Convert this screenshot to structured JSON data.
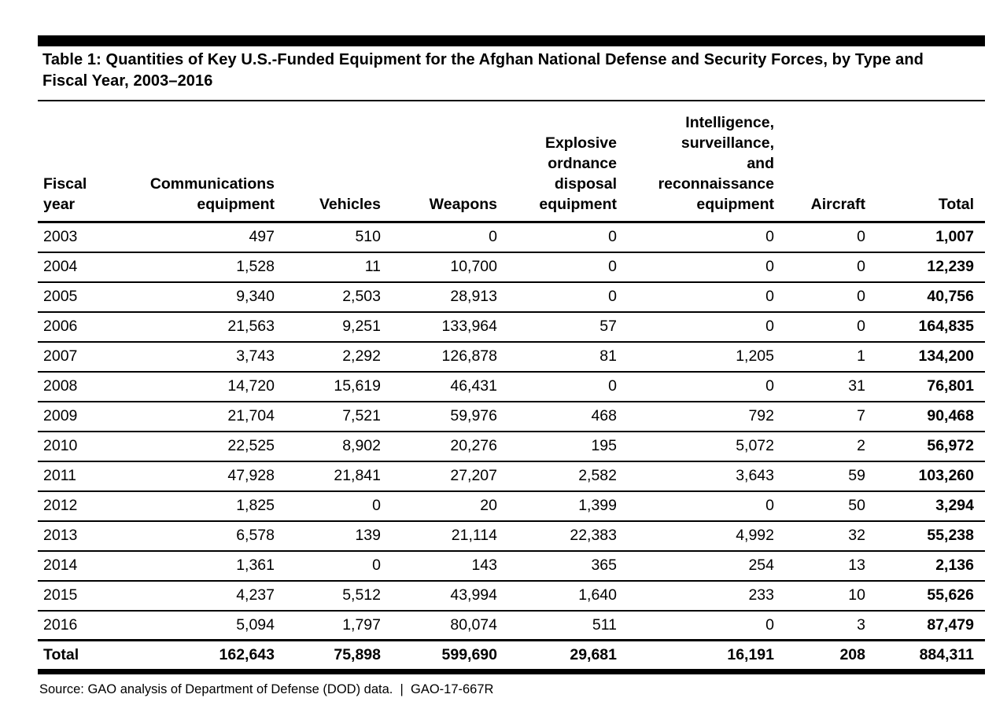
{
  "title": "Table 1: Quantities of Key U.S.-Funded Equipment for the Afghan National Defense and Security Forces, by Type and Fiscal Year, 2003–2016",
  "source": "Source: GAO analysis of Department of Defense (DOD) data.  |  GAO-17-667R",
  "chart_data": {
    "type": "table",
    "title": "Table 1: Quantities of Key U.S.-Funded Equipment for the Afghan National Defense and Security Forces, by Type and Fiscal Year, 2003–2016",
    "columns": [
      "Fiscal year",
      "Communications equipment",
      "Vehicles",
      "Weapons",
      "Explosive ordnance disposal equipment",
      "Intelligence, surveillance, and reconnaissance equipment",
      "Aircraft",
      "Total"
    ],
    "rows": [
      [
        "2003",
        497,
        510,
        0,
        0,
        0,
        0,
        1007
      ],
      [
        "2004",
        1528,
        11,
        10700,
        0,
        0,
        0,
        12239
      ],
      [
        "2005",
        9340,
        2503,
        28913,
        0,
        0,
        0,
        40756
      ],
      [
        "2006",
        21563,
        9251,
        133964,
        57,
        0,
        0,
        164835
      ],
      [
        "2007",
        3743,
        2292,
        126878,
        81,
        1205,
        1,
        134200
      ],
      [
        "2008",
        14720,
        15619,
        46431,
        0,
        0,
        31,
        76801
      ],
      [
        "2009",
        21704,
        7521,
        59976,
        468,
        792,
        7,
        90468
      ],
      [
        "2010",
        22525,
        8902,
        20276,
        195,
        5072,
        2,
        56972
      ],
      [
        "2011",
        47928,
        21841,
        27207,
        2582,
        3643,
        59,
        103260
      ],
      [
        "2012",
        1825,
        0,
        20,
        1399,
        0,
        50,
        3294
      ],
      [
        "2013",
        6578,
        139,
        21114,
        22383,
        4992,
        32,
        55238
      ],
      [
        "2014",
        1361,
        0,
        143,
        365,
        254,
        13,
        2136
      ],
      [
        "2015",
        4237,
        5512,
        43994,
        1640,
        233,
        10,
        55626
      ],
      [
        "2016",
        5094,
        1797,
        80074,
        511,
        0,
        3,
        87479
      ]
    ],
    "total_row": [
      "Total",
      162643,
      75898,
      599690,
      29681,
      16191,
      208,
      884311
    ]
  },
  "table": {
    "columns": [
      "Fiscal\nyear",
      "Communications\nequipment",
      "Vehicles",
      "Weapons",
      "Explosive\nordnance\ndisposal\nequipment",
      "Intelligence,\nsurveillance,\nand\nreconnaissance\nequipment",
      "Aircraft",
      "Total"
    ],
    "rows": [
      [
        "2003",
        "497",
        "510",
        "0",
        "0",
        "0",
        "0",
        "1,007"
      ],
      [
        "2004",
        "1,528",
        "11",
        "10,700",
        "0",
        "0",
        "0",
        "12,239"
      ],
      [
        "2005",
        "9,340",
        "2,503",
        "28,913",
        "0",
        "0",
        "0",
        "40,756"
      ],
      [
        "2006",
        "21,563",
        "9,251",
        "133,964",
        "57",
        "0",
        "0",
        "164,835"
      ],
      [
        "2007",
        "3,743",
        "2,292",
        "126,878",
        "81",
        "1,205",
        "1",
        "134,200"
      ],
      [
        "2008",
        "14,720",
        "15,619",
        "46,431",
        "0",
        "0",
        "31",
        "76,801"
      ],
      [
        "2009",
        "21,704",
        "7,521",
        "59,976",
        "468",
        "792",
        "7",
        "90,468"
      ],
      [
        "2010",
        "22,525",
        "8,902",
        "20,276",
        "195",
        "5,072",
        "2",
        "56,972"
      ],
      [
        "2011",
        "47,928",
        "21,841",
        "27,207",
        "2,582",
        "3,643",
        "59",
        "103,260"
      ],
      [
        "2012",
        "1,825",
        "0",
        "20",
        "1,399",
        "0",
        "50",
        "3,294"
      ],
      [
        "2013",
        "6,578",
        "139",
        "21,114",
        "22,383",
        "4,992",
        "32",
        "55,238"
      ],
      [
        "2014",
        "1,361",
        "0",
        "143",
        "365",
        "254",
        "13",
        "2,136"
      ],
      [
        "2015",
        "4,237",
        "5,512",
        "43,994",
        "1,640",
        "233",
        "10",
        "55,626"
      ],
      [
        "2016",
        "5,094",
        "1,797",
        "80,074",
        "511",
        "0",
        "3",
        "87,479"
      ]
    ],
    "total": [
      "Total",
      "162,643",
      "75,898",
      "599,690",
      "29,681",
      "16,191",
      "208",
      "884,311"
    ]
  },
  "colors": {
    "text": "#000000",
    "background": "#ffffff",
    "bar": "#000000"
  }
}
